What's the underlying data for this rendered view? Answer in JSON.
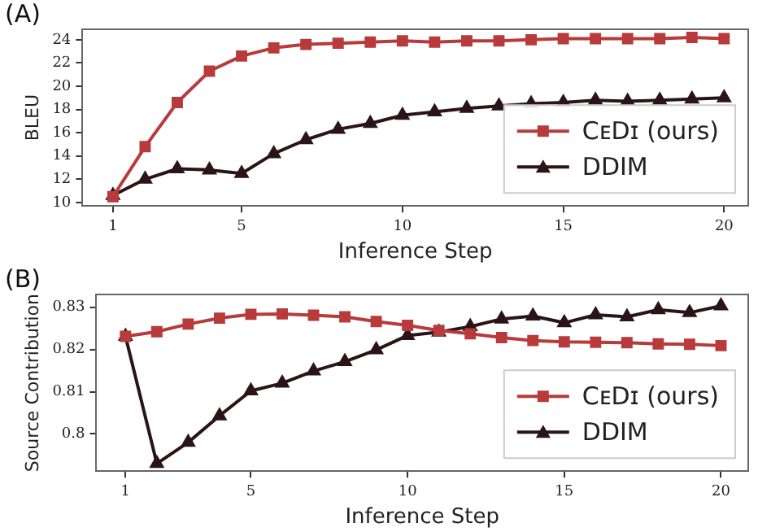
{
  "chart_data": [
    {
      "type": "line",
      "annotations": [
        "(A)"
      ],
      "xlabel": "Inference Step",
      "ylabel": "BLEU",
      "x": [
        1,
        2,
        3,
        4,
        5,
        6,
        7,
        8,
        9,
        10,
        11,
        12,
        13,
        14,
        15,
        16,
        17,
        18,
        19,
        20
      ],
      "xlim": [
        0.05,
        20.75
      ],
      "xticks": [
        1,
        5,
        10,
        15,
        20
      ],
      "ylim": [
        9.7,
        24.9
      ],
      "yticks": [
        10,
        12,
        14,
        16,
        18,
        20,
        22,
        24
      ],
      "grid": false,
      "legend": "bottom right",
      "series": [
        {
          "name": "CᴇDɪ (ours)",
          "color": "#b83a3a",
          "marker": "square",
          "values": [
            10.5,
            14.8,
            18.6,
            21.3,
            22.6,
            23.3,
            23.6,
            23.7,
            23.8,
            23.9,
            23.8,
            23.9,
            23.9,
            24.0,
            24.1,
            24.1,
            24.1,
            24.1,
            24.2,
            24.1
          ]
        },
        {
          "name": "DDIM",
          "color": "#2a1418",
          "marker": "triangle",
          "values": [
            10.6,
            12.0,
            12.9,
            12.8,
            12.5,
            14.2,
            15.4,
            16.3,
            16.8,
            17.5,
            17.8,
            18.1,
            18.3,
            18.5,
            18.6,
            18.8,
            18.7,
            18.8,
            18.9,
            19.0
          ]
        }
      ]
    },
    {
      "type": "line",
      "annotations": [
        "(B)"
      ],
      "xlabel": "Inference Step",
      "ylabel": "Source Contribution",
      "x": [
        1,
        2,
        3,
        4,
        5,
        6,
        7,
        8,
        9,
        10,
        11,
        12,
        13,
        14,
        15,
        16,
        17,
        18,
        19,
        20
      ],
      "xlim": [
        0.07,
        20.87
      ],
      "xticks": [
        1,
        5,
        10,
        15,
        20
      ],
      "ylim": [
        0.7912,
        0.833
      ],
      "yticks": [
        0.8,
        0.81,
        0.82,
        0.83
      ],
      "grid": false,
      "legend": "bottom right",
      "series": [
        {
          "name": "CᴇDɪ (ours)",
          "color": "#b83a3a",
          "marker": "square",
          "values": [
            0.8231,
            0.8242,
            0.826,
            0.8274,
            0.8283,
            0.8284,
            0.8281,
            0.8277,
            0.8266,
            0.8257,
            0.8245,
            0.8237,
            0.8228,
            0.8221,
            0.8218,
            0.8217,
            0.8216,
            0.8213,
            0.8212,
            0.8209
          ]
        },
        {
          "name": "DDIM",
          "color": "#2a1418",
          "marker": "triangle",
          "values": [
            0.8231,
            0.793,
            0.798,
            0.8043,
            0.8102,
            0.812,
            0.8149,
            0.8171,
            0.8199,
            0.8233,
            0.8241,
            0.8254,
            0.8272,
            0.8279,
            0.8263,
            0.8282,
            0.8277,
            0.8294,
            0.8287,
            0.8303
          ]
        }
      ]
    }
  ]
}
